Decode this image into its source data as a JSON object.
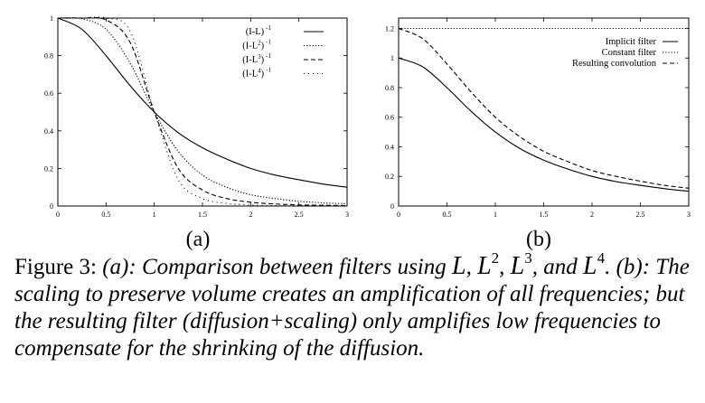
{
  "figure": {
    "panels": [
      {
        "label": "(a)"
      },
      {
        "label": "(b)"
      }
    ],
    "caption": {
      "prefix": "Figure 3:",
      "a_label": "(a):",
      "a_text": "Comparison between filters using",
      "sep1": ",",
      "sep2": ",",
      "and": ", and",
      "math_L": "L",
      "sup2": "2",
      "sup3": "3",
      "sup4": "4",
      "end_a": ".",
      "b_text": "(b): The scaling to preserve volume creates an amplification of all frequencies; but the resulting filter (diffusion+scaling) only amplifies low frequencies to compensate for the shrinking of the diffusion."
    }
  },
  "chart_data": [
    {
      "type": "line",
      "xlim": [
        0,
        3
      ],
      "ylim": [
        0,
        1
      ],
      "xticks": [
        "0",
        "0.5",
        "1",
        "1.5",
        "2",
        "2.5",
        "3"
      ],
      "yticks": [
        "0",
        "0.2",
        "0.4",
        "0.6",
        "0.8",
        "1"
      ],
      "legend_position": "top-right",
      "series": [
        {
          "name": "(I-L) -1",
          "name_base": "(I-L)",
          "name_sup": "-1",
          "style": "solid",
          "x": [
            0,
            0.25,
            0.5,
            0.75,
            1,
            1.25,
            1.5,
            1.75,
            2,
            2.25,
            2.5,
            2.75,
            3
          ],
          "y": [
            1,
            0.94,
            0.8,
            0.64,
            0.5,
            0.39,
            0.31,
            0.25,
            0.2,
            0.165,
            0.14,
            0.117,
            0.1
          ]
        },
        {
          "name": "(I-L2) -1",
          "name_base": "(I-L",
          "name_exp": "2",
          "name_close": ")",
          "name_sup": "-1",
          "style": "dotted",
          "x": [
            0,
            0.25,
            0.5,
            0.75,
            1,
            1.25,
            1.5,
            1.75,
            2,
            2.25,
            2.5,
            2.75,
            3
          ],
          "y": [
            1,
            0.996,
            0.94,
            0.76,
            0.5,
            0.29,
            0.165,
            0.1,
            0.06,
            0.04,
            0.025,
            0.017,
            0.012
          ]
        },
        {
          "name": "(I-L3) -1",
          "name_base": "(I-L",
          "name_exp": "3",
          "name_close": ")",
          "name_sup": "-1",
          "style": "dashed",
          "x": [
            0,
            0.25,
            0.5,
            0.75,
            1,
            1.25,
            1.5,
            1.75,
            2,
            2.25,
            2.5,
            2.75,
            3
          ],
          "y": [
            1,
            1,
            0.99,
            0.87,
            0.5,
            0.2,
            0.085,
            0.04,
            0.02,
            0.011,
            0.006,
            0.004,
            0.003
          ]
        },
        {
          "name": "(I-L4) -1",
          "name_base": "(I-L",
          "name_exp": "4",
          "name_close": ")",
          "name_sup": "-1",
          "style": "sparse-dotted",
          "x": [
            0,
            0.25,
            0.5,
            0.75,
            1,
            1.25,
            1.5,
            1.75,
            2,
            2.25,
            2.5,
            2.75,
            3
          ],
          "y": [
            1,
            1,
            1,
            0.93,
            0.5,
            0.14,
            0.04,
            0.014,
            0.006,
            0.002,
            0.001,
            0.0005,
            0.0002
          ]
        }
      ]
    },
    {
      "type": "line",
      "xlim": [
        0,
        3
      ],
      "ylim": [
        0,
        1.27
      ],
      "xticks": [
        "0",
        "0.5",
        "1",
        "1.5",
        "2",
        "2.5",
        "3"
      ],
      "yticks": [
        "0",
        "0.2",
        "0.4",
        "0.6",
        "0.8",
        "1",
        "1.2"
      ],
      "legend_position": "top-right",
      "series": [
        {
          "name": "Implicit filter",
          "style": "solid",
          "x": [
            0,
            0.25,
            0.5,
            0.75,
            1,
            1.25,
            1.5,
            1.75,
            2,
            2.25,
            2.5,
            2.75,
            3
          ],
          "y": [
            1,
            0.94,
            0.8,
            0.64,
            0.5,
            0.39,
            0.31,
            0.25,
            0.2,
            0.165,
            0.14,
            0.117,
            0.1
          ]
        },
        {
          "name": "Constant filter",
          "style": "dotted",
          "x": [
            0,
            3
          ],
          "y": [
            1.2,
            1.2
          ]
        },
        {
          "name": "Resulting convolution",
          "style": "dashed",
          "x": [
            0,
            0.25,
            0.5,
            0.75,
            1,
            1.25,
            1.5,
            1.75,
            2,
            2.25,
            2.5,
            2.75,
            3
          ],
          "y": [
            1.2,
            1.13,
            0.96,
            0.77,
            0.6,
            0.47,
            0.37,
            0.3,
            0.24,
            0.2,
            0.168,
            0.14,
            0.12
          ]
        }
      ]
    }
  ]
}
